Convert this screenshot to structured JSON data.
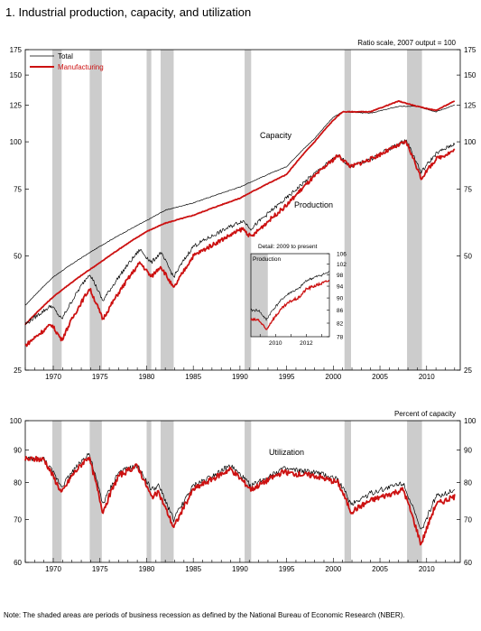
{
  "title": "1.  Industrial production, capacity, and utilization",
  "footnote": "Note: The shaded areas are periods of business recession as defined by the National Bureau of Economic Research (NBER).",
  "colors": {
    "total": "#000000",
    "manufacturing": "#cc1111",
    "recession": "#cccccc"
  },
  "chart_data": [
    {
      "type": "line",
      "scale": "log",
      "note": "Ratio scale, 2007 output = 100",
      "ylim": [
        25,
        175
      ],
      "xlim": [
        1967,
        2013.6
      ],
      "yticks": [
        25,
        50,
        75,
        100,
        125,
        150,
        175
      ],
      "xticks": [
        "1970",
        "1975",
        "1980",
        "1985",
        "1990",
        "1995",
        "2000",
        "2005",
        "2010"
      ],
      "legend": {
        "position": "top-left",
        "entries": [
          "Total",
          "Manufacturing"
        ]
      },
      "annotations": [
        "Capacity",
        "Production"
      ],
      "recessions": [
        [
          1969.9,
          1970.9
        ],
        [
          1973.9,
          1975.2
        ],
        [
          1980.0,
          1980.5
        ],
        [
          1981.5,
          1982.9
        ],
        [
          1990.5,
          1991.2
        ],
        [
          2001.2,
          2001.9
        ],
        [
          2007.9,
          2009.5
        ]
      ],
      "series": [
        {
          "name": "Total",
          "group": "Capacity",
          "x": [
            1967,
            1970,
            1975,
            1980,
            1982,
            1985,
            1990,
            1995,
            1998,
            2000,
            2001,
            2004,
            2007,
            2009,
            2011,
            2013
          ],
          "values": [
            37,
            44,
            53,
            62,
            66,
            69,
            76,
            86,
            102,
            116,
            120,
            119,
            124,
            124,
            120,
            125
          ]
        },
        {
          "name": "Manufacturing",
          "group": "Capacity",
          "x": [
            1967,
            1970,
            1975,
            1980,
            1982,
            1985,
            1990,
            1995,
            1998,
            2000,
            2001,
            2004,
            2007,
            2009,
            2011,
            2013
          ],
          "values": [
            33,
            39,
            48,
            58,
            61,
            64,
            71,
            82,
            100,
            114,
            120,
            120,
            128,
            124,
            121,
            128
          ]
        },
        {
          "name": "Total",
          "group": "Production",
          "x": [
            1967,
            1969.8,
            1970.9,
            1973.9,
            1975.3,
            1979.3,
            1980.5,
            1981.5,
            1982.9,
            1985,
            1990.3,
            1991.2,
            1995,
            2000.5,
            2001.9,
            2004,
            2007.8,
            2009.4,
            2011,
            2013
          ],
          "values": [
            33,
            37,
            34,
            45,
            38,
            52,
            48,
            51,
            44,
            53,
            62,
            59,
            71,
            92,
            86,
            90,
            101,
            83,
            93,
            99
          ]
        },
        {
          "name": "Manufacturing",
          "group": "Production",
          "x": [
            1967,
            1969.8,
            1970.9,
            1973.9,
            1975.3,
            1979.3,
            1980.5,
            1981.5,
            1982.9,
            1985,
            1990.3,
            1991.2,
            1995,
            2000.5,
            2001.9,
            2004,
            2007.8,
            2009.4,
            2011,
            2013
          ],
          "values": [
            29,
            33,
            30,
            41,
            34,
            48,
            44,
            47,
            41,
            50,
            59,
            56,
            68,
            92,
            86,
            90,
            100,
            80,
            90,
            95
          ]
        }
      ]
    },
    {
      "type": "line",
      "scale": "log",
      "title": "Detail: 2009 to present",
      "ylabel": "Production",
      "xlim": [
        2008.4,
        2013.5
      ],
      "ylim": [
        78,
        106
      ],
      "yticks": [
        78,
        82,
        86,
        90,
        94,
        98,
        102,
        106
      ],
      "xticks": [
        "2010",
        "2012"
      ],
      "recessions": [
        [
          2008.4,
          2009.5
        ]
      ],
      "series": [
        {
          "name": "Total",
          "x": [
            2008.4,
            2008.9,
            2009.4,
            2009.8,
            2010.5,
            2011,
            2011.5,
            2012,
            2012.5,
            2013,
            2013.5
          ],
          "values": [
            86,
            86,
            83,
            86,
            90,
            92,
            93,
            96,
            97,
            98,
            99
          ]
        },
        {
          "name": "Manufacturing",
          "x": [
            2008.4,
            2008.9,
            2009.4,
            2009.8,
            2010.5,
            2011,
            2011.5,
            2012,
            2012.5,
            2013,
            2013.5
          ],
          "values": [
            83,
            83,
            80,
            83,
            87,
            89,
            90,
            93,
            94,
            95,
            96
          ]
        }
      ]
    },
    {
      "type": "line",
      "title": "Utilization",
      "ylabel": "Percent of capacity",
      "ylim": [
        60,
        100
      ],
      "xlim": [
        1967,
        2013.6
      ],
      "yticks": [
        60,
        70,
        80,
        90,
        100
      ],
      "xticks": [
        "1970",
        "1975",
        "1980",
        "1985",
        "1990",
        "1995",
        "2000",
        "2005",
        "2010"
      ],
      "recessions": [
        [
          1969.9,
          1970.9
        ],
        [
          1973.9,
          1975.2
        ],
        [
          1980.0,
          1980.5
        ],
        [
          1981.5,
          1982.9
        ],
        [
          1990.5,
          1991.2
        ],
        [
          2001.2,
          2001.9
        ],
        [
          2007.9,
          2009.5
        ]
      ],
      "series": [
        {
          "name": "Total",
          "x": [
            1967,
            1969,
            1970.9,
            1972,
            1973.8,
            1975.3,
            1977,
            1979,
            1980.5,
            1981.3,
            1982.9,
            1985,
            1989,
            1991.2,
            1994.5,
            1998,
            2000.5,
            2001.9,
            2004,
            2007.5,
            2009.4,
            2011,
            2013
          ],
          "values": [
            87,
            87,
            79,
            83,
            89,
            74,
            83,
            85,
            78,
            79,
            70,
            79,
            85,
            79,
            84,
            83,
            81,
            74,
            77,
            80,
            67,
            76,
            78
          ]
        },
        {
          "name": "Manufacturing",
          "x": [
            1967,
            1969,
            1970.9,
            1972,
            1973.8,
            1975.3,
            1977,
            1979,
            1980.5,
            1981.3,
            1982.9,
            1985,
            1989,
            1991.2,
            1994.5,
            1998,
            2000.5,
            2001.9,
            2004,
            2007.5,
            2009.4,
            2011,
            2013
          ],
          "values": [
            87,
            87,
            77,
            82,
            88,
            72,
            82,
            85,
            76,
            77,
            68,
            78,
            84,
            78,
            83,
            82,
            80,
            72,
            75,
            78,
            64,
            74,
            76
          ]
        }
      ]
    }
  ]
}
